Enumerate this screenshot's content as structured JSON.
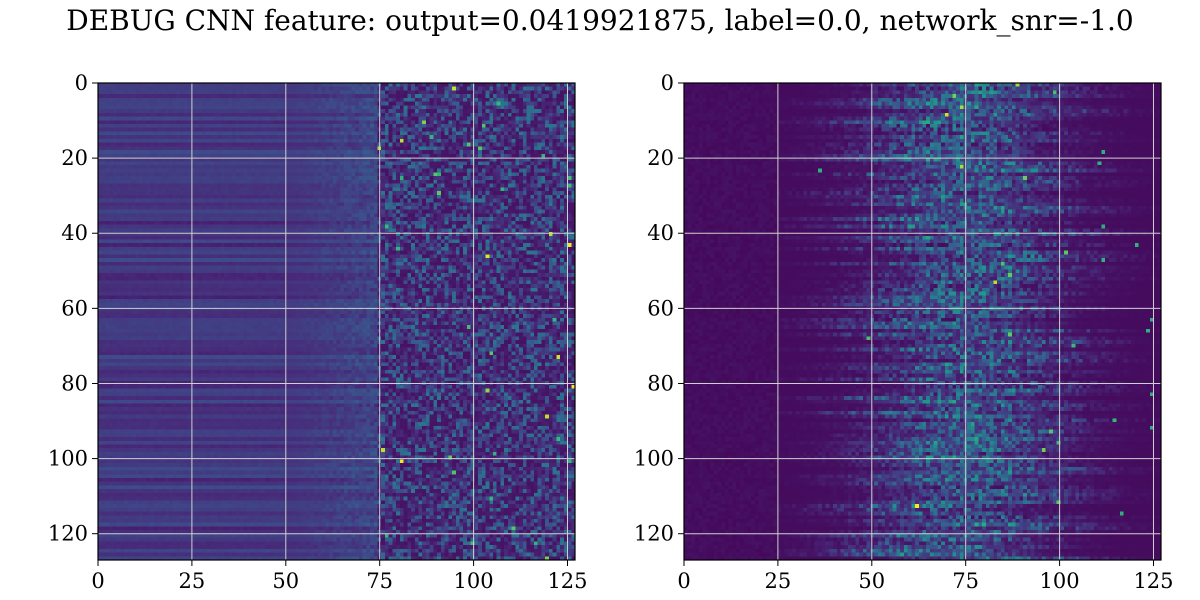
{
  "title": "DEBUG CNN feature: output=0.0419921875, label=0.0, network_snr=-1.0",
  "colors": {
    "colormap": "viridis",
    "grid": "#d0d0d0",
    "frame": "#000000"
  },
  "chart_data": [
    {
      "type": "heatmap",
      "colormap": "viridis",
      "grid": true,
      "xlim": [
        0,
        127
      ],
      "ylim": [
        127,
        0
      ],
      "x_ticks": [
        0,
        25,
        50,
        75,
        100,
        125
      ],
      "y_ticks": [
        0,
        20,
        40,
        60,
        80,
        100,
        120
      ],
      "x_tick_labels": [
        "0",
        "25",
        "50",
        "75",
        "100",
        "125"
      ],
      "y_tick_labels": [
        "0",
        "20",
        "40",
        "60",
        "80",
        "100",
        "120"
      ]
    },
    {
      "type": "heatmap",
      "colormap": "viridis",
      "grid": true,
      "xlim": [
        0,
        127
      ],
      "ylim": [
        127,
        0
      ],
      "x_ticks": [
        0,
        25,
        50,
        75,
        100,
        125
      ],
      "y_ticks": [
        0,
        20,
        40,
        60,
        80,
        100,
        120
      ],
      "x_tick_labels": [
        "0",
        "25",
        "50",
        "75",
        "100",
        "125"
      ],
      "y_tick_labels": [
        "0",
        "20",
        "40",
        "60",
        "80",
        "100",
        "120"
      ]
    }
  ]
}
